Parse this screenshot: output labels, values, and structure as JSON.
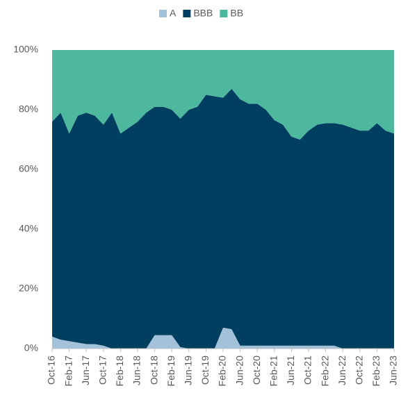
{
  "chart_data": {
    "type": "stacked_area",
    "categories": [
      "Oct-16",
      null,
      "Feb-17",
      null,
      "Jun-17",
      null,
      "Oct-17",
      null,
      "Feb-18",
      null,
      "Jun-18",
      null,
      "Oct-18",
      null,
      "Feb-19",
      null,
      "Jun-19",
      null,
      "Oct-19",
      null,
      "Feb-20",
      null,
      "Jun-20",
      null,
      "Oct-20",
      null,
      "Feb-21",
      null,
      "Jun-21",
      null,
      "Oct-21",
      null,
      "Feb-22",
      null,
      "Jun-22",
      null,
      "Oct-22",
      null,
      "Feb-23",
      null,
      "Jun-23"
    ],
    "series": [
      {
        "name": "A",
        "color": "#a3c1d9",
        "values": [
          4,
          3,
          2.5,
          2,
          1.5,
          1.5,
          1,
          0,
          0,
          0,
          0,
          0,
          4.5,
          4.5,
          4.5,
          0.5,
          0,
          0,
          0,
          0,
          7,
          6.5,
          1,
          1,
          1,
          1,
          1,
          1,
          1,
          1,
          1,
          1,
          1,
          1,
          0,
          0,
          0,
          0,
          0,
          0,
          0
        ]
      },
      {
        "name": "BBB",
        "color": "#003f5f",
        "values": [
          72,
          76,
          69.5,
          76,
          77.5,
          76.5,
          74,
          79,
          72,
          74,
          76,
          79,
          76.5,
          76.5,
          75.5,
          76.5,
          80,
          81,
          85,
          84.5,
          77,
          80.5,
          82.5,
          81,
          81,
          79,
          75.5,
          74,
          70,
          69,
          72,
          74,
          74.5,
          74.5,
          75,
          74,
          73,
          73,
          75.5,
          73,
          72
        ]
      },
      {
        "name": "BB",
        "color": "#4db89e",
        "values": [
          24,
          21,
          28,
          22,
          21,
          22,
          25,
          21,
          28,
          26,
          24,
          21,
          19,
          19,
          20,
          23,
          20,
          19,
          15,
          15.5,
          16,
          13,
          16.5,
          18,
          18,
          20,
          23.5,
          25,
          29,
          30,
          27,
          25,
          24.5,
          24.5,
          25,
          26,
          27,
          27,
          24.5,
          27,
          28
        ]
      }
    ],
    "ylim": [
      0,
      100
    ],
    "yticks": [
      {
        "value": 0,
        "label": "0%"
      },
      {
        "value": 20,
        "label": "20%"
      },
      {
        "value": 40,
        "label": "40%"
      },
      {
        "value": 60,
        "label": "60%"
      },
      {
        "value": 80,
        "label": "80%"
      },
      {
        "value": 100,
        "label": "100%"
      }
    ],
    "grid": false,
    "legend": "top"
  }
}
